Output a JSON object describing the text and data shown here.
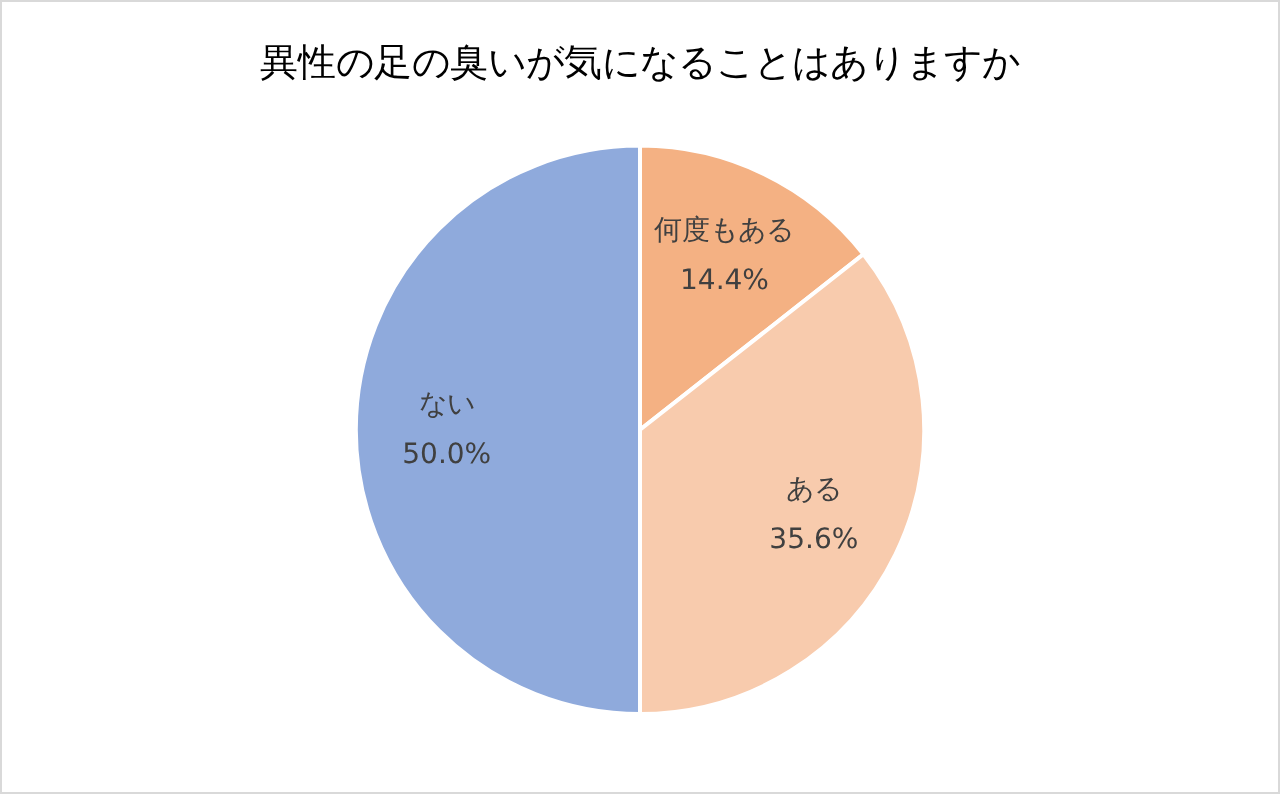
{
  "chart_data": {
    "type": "pie",
    "title": "異性の足の臭いが気になることはありますか",
    "categories": [
      "何度もある",
      "ある",
      "ない"
    ],
    "values": [
      14.4,
      35.6,
      50.0
    ],
    "colors": [
      "#f4b183",
      "#f8cbad",
      "#8faadc"
    ],
    "value_labels": [
      "14.4%",
      "35.6%",
      "50.0%"
    ],
    "legend": false
  }
}
